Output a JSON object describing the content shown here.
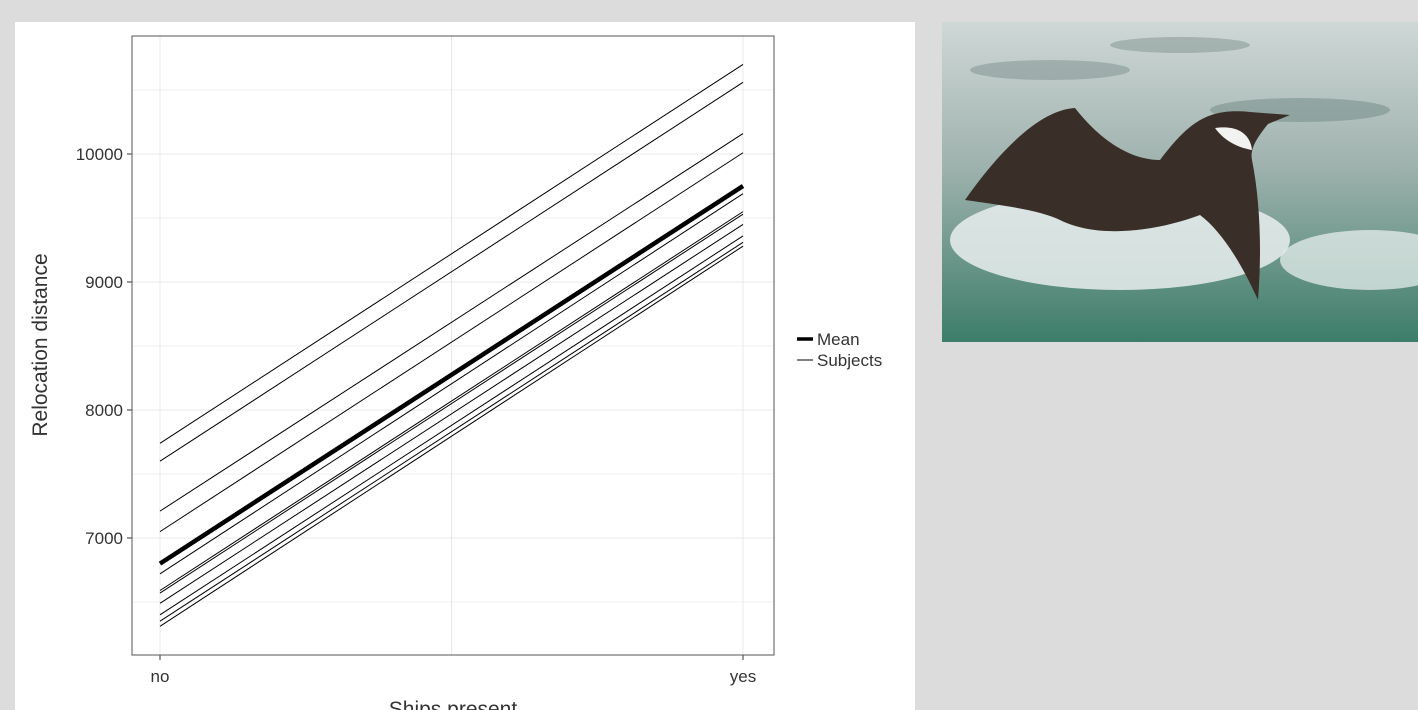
{
  "chart_data": {
    "type": "line",
    "x_label": "Ships present",
    "y_label": "Relocation distance",
    "categories": [
      "no",
      "yes"
    ],
    "ylim": [
      6086,
      10922
    ],
    "yticks": [
      7000,
      8000,
      9000,
      10000
    ],
    "yminor": [
      6500,
      7500,
      8500,
      9500,
      10500
    ],
    "grid": true,
    "series": [
      {
        "name": "Mean",
        "color": "#000000",
        "values": [
          6800,
          9750
        ]
      },
      {
        "name": "Subjects",
        "color": "#000000",
        "subjects": [
          [
            7740,
            10700
          ],
          [
            7600,
            10560
          ],
          [
            7210,
            10160
          ],
          [
            7050,
            10010
          ],
          [
            6720,
            9690
          ],
          [
            6590,
            9550
          ],
          [
            6570,
            9530
          ],
          [
            6490,
            9450
          ],
          [
            6400,
            9360
          ],
          [
            6350,
            9310
          ],
          [
            6310,
            9280
          ]
        ]
      }
    ]
  }
}
